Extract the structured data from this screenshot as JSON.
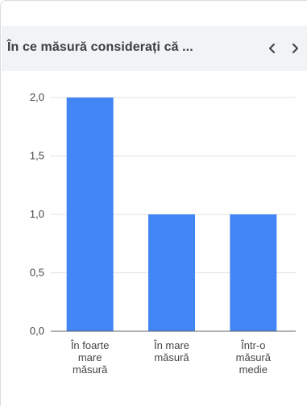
{
  "header": {
    "title": "În ce măsură considerați că ...",
    "prev_icon": "chevron-left-icon",
    "next_icon": "chevron-right-icon"
  },
  "colors": {
    "bar": "#4285f4",
    "grid": "#e0e0e0",
    "axis": "#5f6368",
    "text": "#444444",
    "header_bg": "#f1f3f4"
  },
  "chart_data": {
    "type": "bar",
    "categories": [
      [
        "În foarte",
        "mare",
        "măsură"
      ],
      [
        "În mare",
        "măsură"
      ],
      [
        "Într-o",
        "măsură",
        "medie"
      ]
    ],
    "values": [
      2,
      1,
      1
    ],
    "ylim": [
      0,
      2
    ],
    "yticks": [
      "0,0",
      "0,5",
      "1,0",
      "1,5",
      "2,0"
    ],
    "grid": true,
    "title": "",
    "xlabel": "",
    "ylabel": ""
  }
}
